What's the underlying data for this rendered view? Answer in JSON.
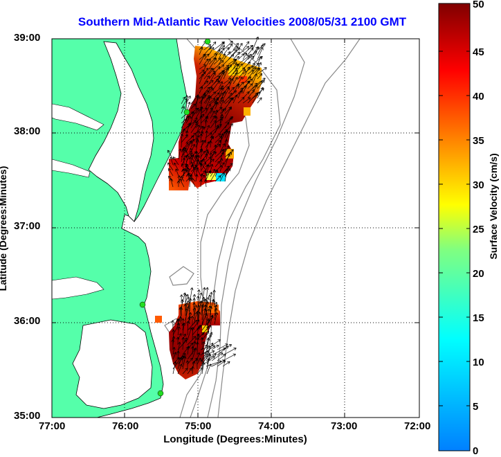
{
  "title": "Southern Mid-Atlantic Raw Velocities 2008/05/31 2100 GMT",
  "xlabel": "Longitude (Degrees:Minutes)",
  "ylabel": "Latitude (Degrees:Minutes)",
  "colorbar": {
    "label": "Surface Velocity (cm/s)",
    "ticks": [
      "0",
      "5",
      "10",
      "15",
      "20",
      "25",
      "30",
      "35",
      "40",
      "45",
      "50"
    ],
    "range": [
      0,
      50
    ]
  },
  "colors": {
    "land": "#55ffaa",
    "title": "#0000ff",
    "arrows": "#000000",
    "stations": "#22dd22"
  },
  "chart_data": {
    "type": "heatmap",
    "title": "Southern Mid-Atlantic Raw Velocities 2008/05/31 2100 GMT",
    "xlabel": "Longitude (Degrees:Minutes)",
    "ylabel": "Latitude (Degrees:Minutes)",
    "colorbar_label": "Surface Velocity (cm/s)",
    "xlim": [
      -77,
      -72
    ],
    "ylim": [
      35,
      39
    ],
    "x_ticks": [
      "77:00",
      "76:00",
      "75:00",
      "74:00",
      "73:00",
      "72:00"
    ],
    "y_ticks": [
      "35:00",
      "36:00",
      "37:00",
      "38:00",
      "39:00"
    ],
    "clim": [
      0,
      50
    ],
    "grid": true
  }
}
